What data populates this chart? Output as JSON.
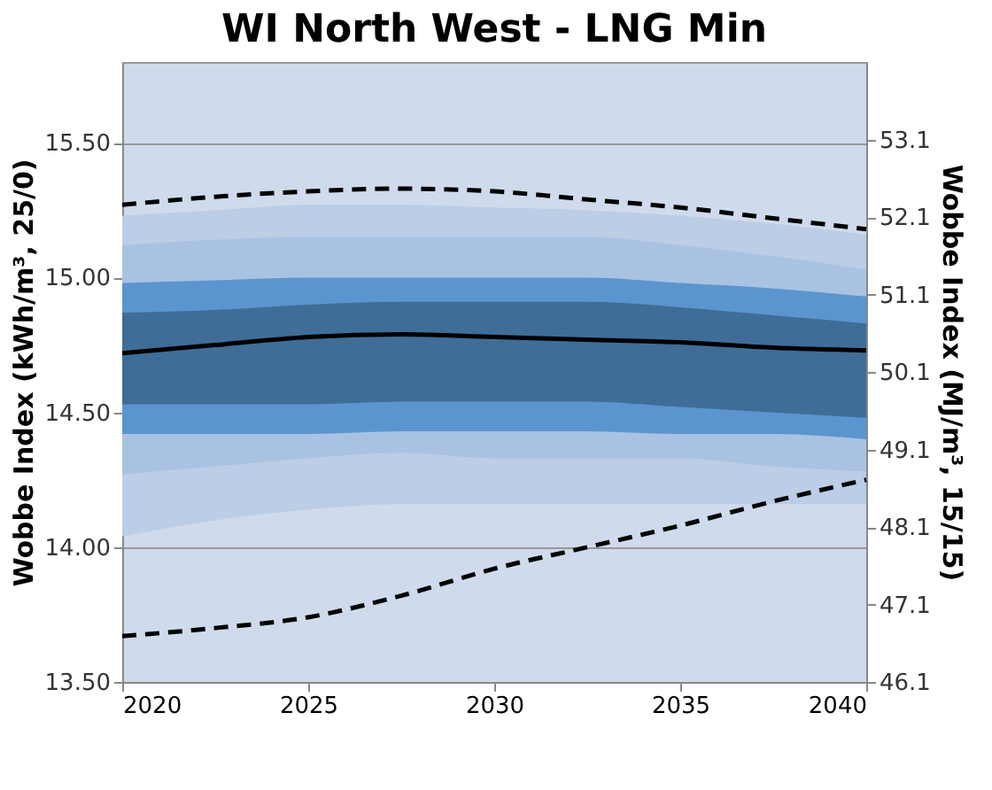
{
  "chart_data": {
    "type": "line",
    "title": "WI North West - LNG Min",
    "ylabel": "Wobbe Index (kWh/m³, 25/0)",
    "y2label": "Wobbe Index (MJ/m³, 15/15)",
    "x": [
      2020,
      2022.5,
      2025,
      2027.5,
      2030,
      2032.5,
      2035,
      2037.5,
      2040
    ],
    "xlim": [
      2020,
      2040
    ],
    "xticks": [
      2020,
      2025,
      2030,
      2035,
      2040
    ],
    "ylim": [
      13.5,
      15.8
    ],
    "yticks": [
      {
        "value": 13.5,
        "label": "13.50"
      },
      {
        "value": 14.0,
        "label": "14.00"
      },
      {
        "value": 14.5,
        "label": "14.50"
      },
      {
        "value": 15.0,
        "label": "15.00"
      },
      {
        "value": 15.5,
        "label": "15.50"
      }
    ],
    "y2lim": [
      46.1,
      54.1
    ],
    "y2ticks": [
      46.1,
      47.1,
      48.1,
      49.1,
      50.1,
      51.1,
      52.1,
      53.1
    ],
    "grid": "y",
    "series": [
      {
        "color": "#bccde6",
        "values": [
          null,
          null,
          null,
          null,
          null,
          null,
          null,
          null,
          null
        ],
        "lower": [
          14.04,
          14.1,
          14.14,
          14.16,
          14.16,
          14.16,
          14.16,
          14.16,
          14.16
        ],
        "upper": [
          15.23,
          15.25,
          15.27,
          15.27,
          15.26,
          15.25,
          15.23,
          15.2,
          15.16
        ]
      },
      {
        "color": "#a9c2e2",
        "values": [
          null,
          null,
          null,
          null,
          null,
          null,
          null,
          null,
          null
        ],
        "lower": [
          14.27,
          14.3,
          14.33,
          14.35,
          14.33,
          14.33,
          14.33,
          14.3,
          14.28
        ],
        "upper": [
          15.12,
          15.14,
          15.15,
          15.15,
          15.15,
          15.15,
          15.12,
          15.08,
          15.03
        ]
      },
      {
        "color": "#5b95cf",
        "values": [
          null,
          null,
          null,
          null,
          null,
          null,
          null,
          null,
          null
        ],
        "lower": [
          14.42,
          14.42,
          14.42,
          14.43,
          14.43,
          14.43,
          14.42,
          14.42,
          14.4
        ],
        "upper": [
          14.98,
          14.99,
          15.0,
          15.0,
          15.0,
          15.0,
          14.98,
          14.96,
          14.93
        ]
      },
      {
        "color": "#3f6d98",
        "values": [
          null,
          null,
          null,
          null,
          null,
          null,
          null,
          null,
          null
        ],
        "lower": [
          14.53,
          14.53,
          14.53,
          14.54,
          14.54,
          14.54,
          14.52,
          14.5,
          14.48
        ],
        "upper": [
          14.87,
          14.88,
          14.9,
          14.91,
          14.91,
          14.91,
          14.89,
          14.86,
          14.83
        ]
      },
      {
        "color": "#000000",
        "line_style": "dashed",
        "values": [
          15.27,
          15.3,
          15.32,
          15.33,
          15.32,
          15.29,
          15.26,
          15.22,
          15.18
        ]
      },
      {
        "color": "#000000",
        "line_style": "dashed",
        "values": [
          13.67,
          13.7,
          13.74,
          13.82,
          13.92,
          14.0,
          14.08,
          14.17,
          14.25
        ]
      },
      {
        "color": "#000000",
        "line_style": "solid",
        "values": [
          14.72,
          14.75,
          14.78,
          14.79,
          14.78,
          14.77,
          14.76,
          14.74,
          14.73
        ]
      }
    ]
  }
}
